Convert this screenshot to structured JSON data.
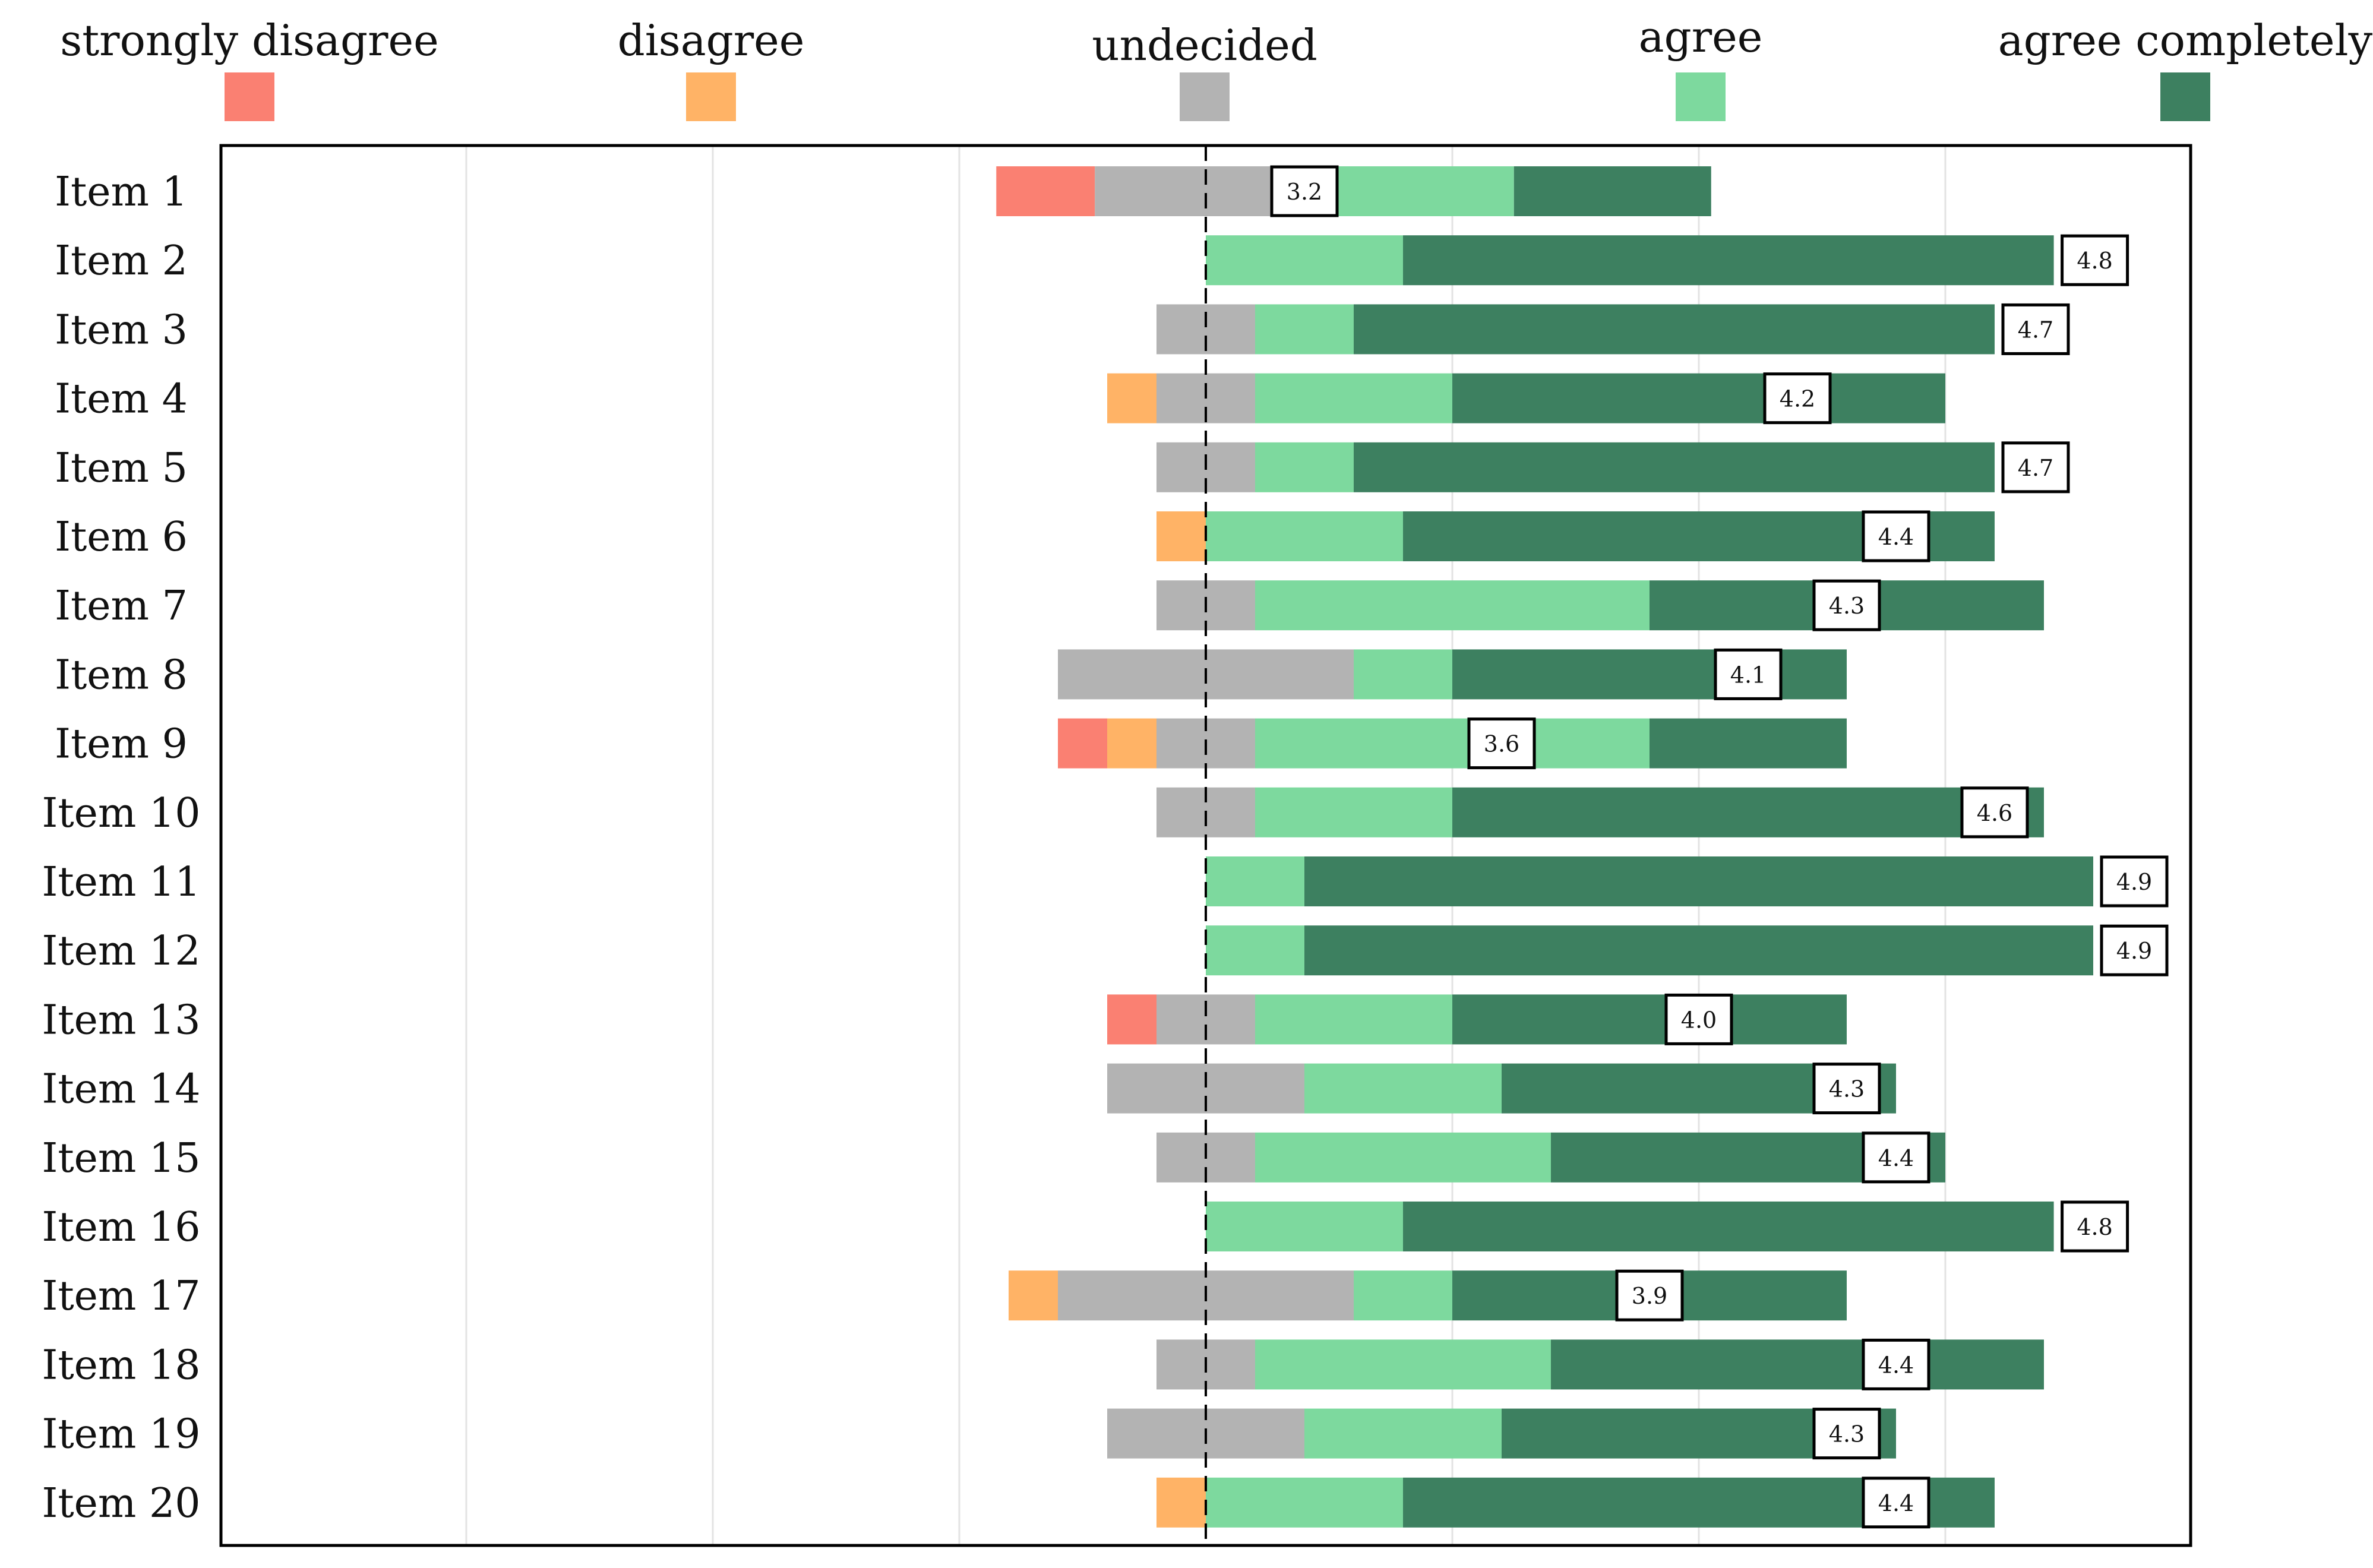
{
  "chart_data": {
    "type": "bar",
    "subtype": "diverging-stacked-likert",
    "legend": [
      {
        "key": "sd",
        "label": "strongly disagree",
        "color": "#fa8072"
      },
      {
        "key": "d",
        "label": "disagree",
        "color": "#ffb366"
      },
      {
        "key": "u",
        "label": "undecided",
        "color": "#b3b3b3"
      },
      {
        "key": "a",
        "label": "agree",
        "color": "#7dd99e"
      },
      {
        "key": "ac",
        "label": "agree completely",
        "color": "#3d8060"
      }
    ],
    "legend_position": "top",
    "x_range": [
      -4,
      4
    ],
    "gridlines": [
      -3,
      -2,
      -1,
      1,
      2,
      3
    ],
    "center_line": 0,
    "items": [
      {
        "label": "Item 1",
        "counts": [
          2,
          0,
          4.5,
          4,
          4
        ],
        "mean": "3.2"
      },
      {
        "label": "Item 2",
        "counts": [
          0,
          0,
          0,
          4,
          13.2
        ],
        "mean": "4.8"
      },
      {
        "label": "Item 3",
        "counts": [
          0,
          0,
          2,
          2,
          13
        ],
        "mean": "4.7"
      },
      {
        "label": "Item 4",
        "counts": [
          0,
          1,
          2,
          4,
          10
        ],
        "mean": "4.2"
      },
      {
        "label": "Item 5",
        "counts": [
          0,
          0,
          2,
          2,
          13
        ],
        "mean": "4.7"
      },
      {
        "label": "Item 6",
        "counts": [
          0,
          1,
          0,
          4,
          12
        ],
        "mean": "4.4"
      },
      {
        "label": "Item 7",
        "counts": [
          0,
          0,
          2,
          8,
          8
        ],
        "mean": "4.3"
      },
      {
        "label": "Item 8",
        "counts": [
          0,
          0,
          6,
          2,
          8
        ],
        "mean": "4.1"
      },
      {
        "label": "Item 9",
        "counts": [
          1,
          1,
          2,
          8,
          4
        ],
        "mean": "3.6"
      },
      {
        "label": "Item 10",
        "counts": [
          0,
          0,
          2,
          4,
          12
        ],
        "mean": "4.6"
      },
      {
        "label": "Item 11",
        "counts": [
          0,
          0,
          0,
          2,
          16
        ],
        "mean": "4.9"
      },
      {
        "label": "Item 12",
        "counts": [
          0,
          0,
          0,
          2,
          16
        ],
        "mean": "4.9"
      },
      {
        "label": "Item 13",
        "counts": [
          1,
          0,
          2,
          4,
          8
        ],
        "mean": "4.0"
      },
      {
        "label": "Item 14",
        "counts": [
          0,
          0,
          4,
          4,
          8
        ],
        "mean": "4.3"
      },
      {
        "label": "Item 15",
        "counts": [
          0,
          0,
          2,
          6,
          8
        ],
        "mean": "4.4"
      },
      {
        "label": "Item 16",
        "counts": [
          0,
          0,
          0,
          4,
          13.2
        ],
        "mean": "4.8"
      },
      {
        "label": "Item 17",
        "counts": [
          0,
          1,
          6,
          2,
          8
        ],
        "mean": "3.9"
      },
      {
        "label": "Item 18",
        "counts": [
          0,
          0,
          2,
          6,
          10
        ],
        "mean": "4.4"
      },
      {
        "label": "Item 19",
        "counts": [
          0,
          0,
          4,
          4,
          8
        ],
        "mean": "4.3"
      },
      {
        "label": "Item 20",
        "counts": [
          0,
          1,
          0,
          4,
          12
        ],
        "mean": "4.4"
      }
    ]
  }
}
